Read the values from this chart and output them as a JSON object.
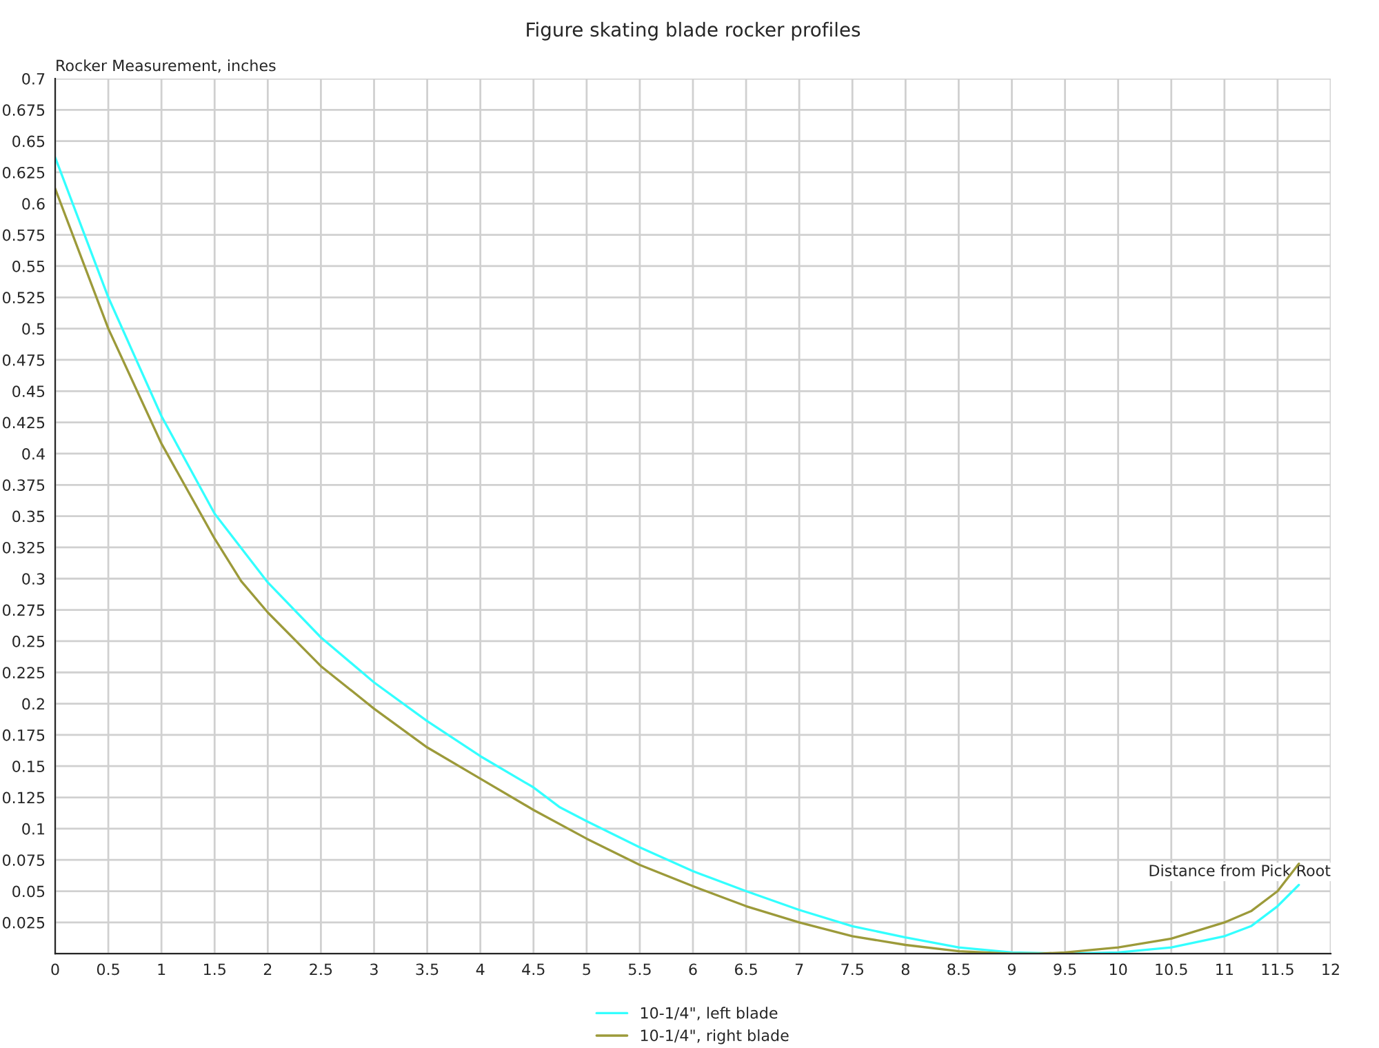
{
  "chart_data": {
    "type": "line",
    "title": "Figure skating blade rocker profiles",
    "xlabel": "Distance from Pick Root",
    "ylabel": "Rocker Measurement, inches",
    "xlim": [
      0,
      12
    ],
    "ylim": [
      0,
      0.7
    ],
    "xticks": [
      0,
      0.5,
      1,
      1.5,
      2,
      2.5,
      3,
      3.5,
      4,
      4.5,
      5,
      5.5,
      6,
      6.5,
      7,
      7.5,
      8,
      8.5,
      9,
      9.5,
      10,
      10.5,
      11,
      11.5,
      12
    ],
    "yticks": [
      {
        "value": 0,
        "label": null
      },
      0.025,
      0.05,
      0.075,
      0.1,
      0.125,
      0.15,
      0.175,
      0.2,
      0.225,
      0.25,
      0.275,
      0.3,
      0.325,
      0.35,
      0.375,
      0.4,
      0.425,
      0.45,
      0.475,
      0.5,
      0.525,
      0.55,
      0.575,
      0.6,
      0.625,
      0.65,
      0.675,
      0.7
    ],
    "grid": true,
    "legend": "bottom",
    "marker": "none",
    "line_style": "solid",
    "series": [
      {
        "name": "10-1/4\", left blade",
        "color": "#33ffff",
        "x": [
          0,
          0.5,
          1,
          1.5,
          2,
          2.5,
          3,
          3.5,
          4,
          4.5,
          4.75,
          5,
          5.5,
          6,
          6.5,
          7,
          7.5,
          8,
          8.5,
          9,
          9.5,
          10,
          10.5,
          11,
          11.25,
          11.5,
          11.7
        ],
        "values": [
          0.637,
          0.525,
          0.43,
          0.352,
          0.297,
          0.253,
          0.217,
          0.186,
          0.158,
          0.133,
          0.117,
          0.106,
          0.085,
          0.066,
          0.05,
          0.035,
          0.022,
          0.013,
          0.005,
          0.001,
          0,
          0.001,
          0.005,
          0.014,
          0.022,
          0.038,
          0.055
        ]
      },
      {
        "name": "10-1/4\", right blade",
        "color": "#9c9a3a",
        "x": [
          0,
          0.5,
          1,
          1.5,
          1.75,
          2,
          2.5,
          3,
          3.5,
          4,
          4.5,
          5,
          5.5,
          6,
          6.5,
          7,
          7.5,
          8,
          8.5,
          9,
          9.25,
          9.5,
          10,
          10.5,
          11,
          11.25,
          11.5,
          11.7
        ],
        "values": [
          0.612,
          0.5,
          0.408,
          0.332,
          0.298,
          0.273,
          0.23,
          0.196,
          0.165,
          0.14,
          0.115,
          0.092,
          0.071,
          0.054,
          0.038,
          0.025,
          0.014,
          0.007,
          0.002,
          0,
          0,
          0.001,
          0.005,
          0.012,
          0.025,
          0.034,
          0.05,
          0.072
        ]
      }
    ]
  }
}
